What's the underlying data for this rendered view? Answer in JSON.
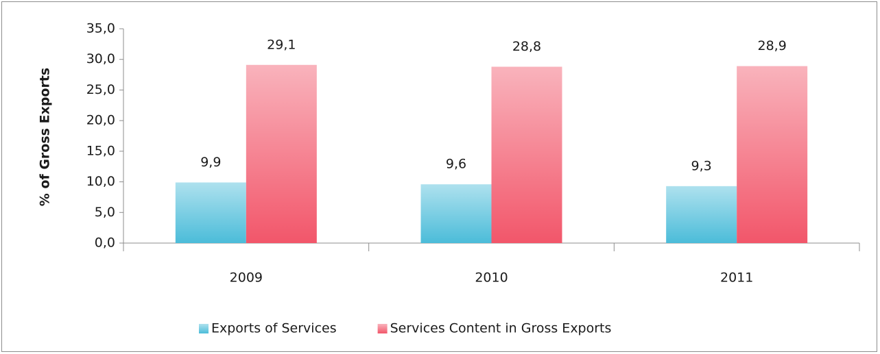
{
  "chart_data": {
    "type": "bar",
    "y_axis_label": "% of Gross Exports",
    "categories": [
      "2009",
      "2010",
      "2011"
    ],
    "series": [
      {
        "name": "Exports of Services",
        "color": "#4bbcd9",
        "values": [
          9.9,
          9.6,
          9.3
        ],
        "value_labels": [
          "9,9",
          "9,6",
          "9,3"
        ]
      },
      {
        "name": "Services Content in Gross Exports",
        "color": "#f2566a",
        "values": [
          29.1,
          28.8,
          28.9
        ],
        "value_labels": [
          "29,1",
          "28,8",
          "28,9"
        ]
      }
    ],
    "ylim": [
      0,
      35
    ],
    "yticks": [
      {
        "value": 0,
        "label": "0,0"
      },
      {
        "value": 5,
        "label": "5,0"
      },
      {
        "value": 10,
        "label": "10,0"
      },
      {
        "value": 15,
        "label": "15,0"
      },
      {
        "value": 20,
        "label": "20,0"
      },
      {
        "value": 25,
        "label": "25,0"
      },
      {
        "value": 30,
        "label": "30,0"
      },
      {
        "value": 35,
        "label": "35,0"
      }
    ],
    "legend": "bottom"
  }
}
